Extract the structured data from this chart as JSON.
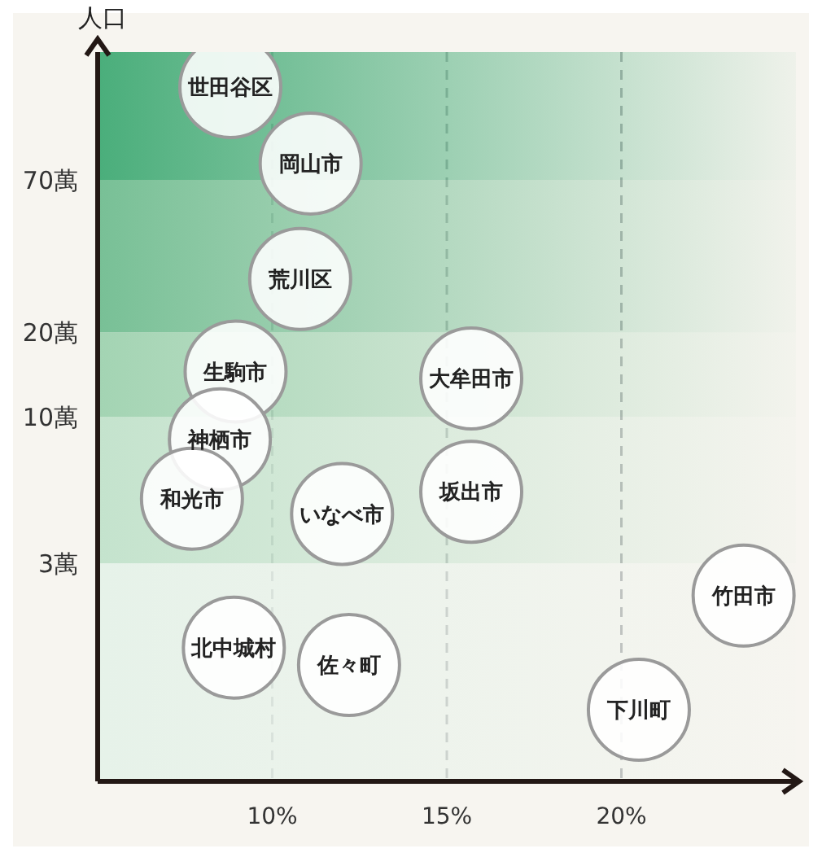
{
  "chart_data": {
    "type": "scatter",
    "ylabel": "人口",
    "x": [
      8.8,
      11.1,
      10.8,
      8.95,
      15.7,
      8.5,
      7.7,
      12.0,
      15.7,
      8.9,
      12.2,
      20.5,
      23.5
    ],
    "series": [
      {
        "color": "#ffffff",
        "values": [
          150,
          80,
          31,
          14.5,
          13.7,
          8.3,
          5.1,
          4.5,
          5.4,
          1.5,
          1.3,
          0.9,
          2.3
        ]
      }
    ],
    "marker": "circle",
    "annotations": [
      {
        "text": "世田谷区",
        "x": 8.8,
        "y": 150
      },
      {
        "text": "岡山市",
        "x": 11.1,
        "y": 80
      },
      {
        "text": "荒川区",
        "x": 10.8,
        "y": 31
      },
      {
        "text": "生駒市",
        "x": 8.95,
        "y": 14.5
      },
      {
        "text": "大牟田市",
        "x": 15.7,
        "y": 13.7
      },
      {
        "text": "神栖市",
        "x": 8.5,
        "y": 8.3
      },
      {
        "text": "和光市",
        "x": 7.7,
        "y": 5.1
      },
      {
        "text": "いなべ市",
        "x": 12.0,
        "y": 4.5
      },
      {
        "text": "坂出市",
        "x": 15.7,
        "y": 5.4
      },
      {
        "text": "北中城村",
        "x": 8.9,
        "y": 1.5
      },
      {
        "text": "佐々町",
        "x": 12.2,
        "y": 1.3
      },
      {
        "text": "下川町",
        "x": 20.5,
        "y": 0.9
      },
      {
        "text": "竹田市",
        "x": 23.5,
        "y": 2.3
      }
    ],
    "xlim": [
      5,
      25
    ],
    "xticks": [
      {
        "value": 10,
        "label": "10%"
      },
      {
        "value": 15,
        "label": "15%"
      },
      {
        "value": 20,
        "label": "20%"
      }
    ],
    "ylim": [
      0.5,
      200
    ],
    "yticks": [
      {
        "value": 3,
        "label": "3萬"
      },
      {
        "value": 10,
        "label": "10萬"
      },
      {
        "value": 20,
        "label": "20萬"
      },
      {
        "value": 70,
        "label": "70萬"
      }
    ],
    "log": "y",
    "grid": "x",
    "bands": [
      {
        "axis": "y",
        "from": 0.5,
        "to": 3,
        "color": "#e6f2e9"
      },
      {
        "axis": "y",
        "from": 3,
        "to": 10,
        "color": "#c4e3cd"
      },
      {
        "axis": "y",
        "from": 10,
        "to": 20,
        "color": "#a3d4b3"
      },
      {
        "axis": "y",
        "from": 20,
        "to": 70,
        "color": "#78c096"
      },
      {
        "axis": "y",
        "from": 70,
        "to": 200,
        "color": "#4aae7b"
      }
    ]
  }
}
